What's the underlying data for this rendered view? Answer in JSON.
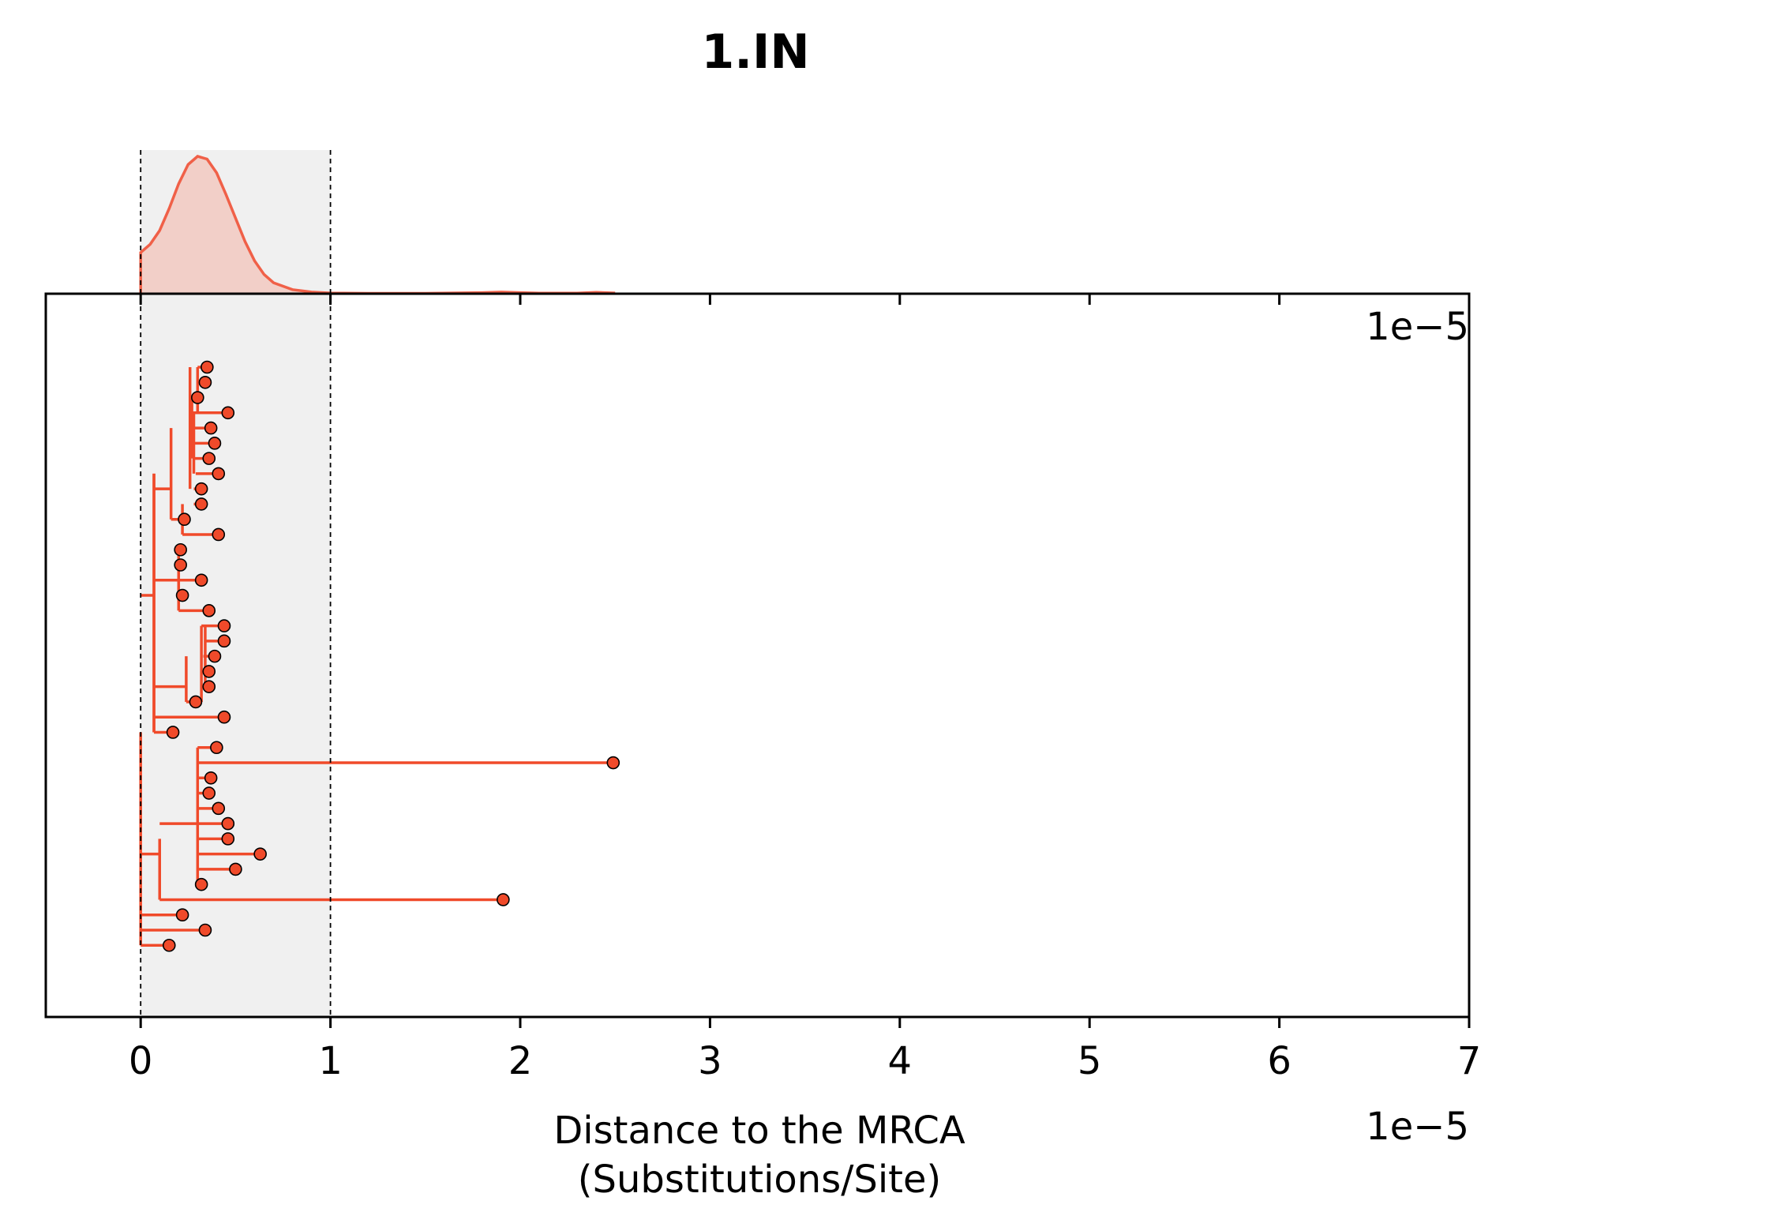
{
  "chart_data": {
    "type": "scatter",
    "title": "1.IN",
    "xlabel_line1": "Distance to the MRCA",
    "xlabel_line2": "(Substitutions/Site)",
    "x_offset_label": "1e−5",
    "x_offset_label_top": "1e−5",
    "xlim": [
      -0.5,
      7
    ],
    "x_ticks": [
      0,
      1,
      2,
      3,
      4,
      5,
      6,
      7
    ],
    "highlight_interval": [
      0,
      1
    ],
    "grid": false,
    "colors": {
      "tree": "#f04a2a",
      "tip_fill": "#f04a2a",
      "tip_edge": "#000000",
      "density_line": "#f06048",
      "density_fill": "#f2cfc8",
      "highlight": "#f0f0f0"
    },
    "tips": [
      {
        "x": 0.35,
        "y": 1
      },
      {
        "x": 0.34,
        "y": 2
      },
      {
        "x": 0.3,
        "y": 3
      },
      {
        "x": 0.46,
        "y": 4
      },
      {
        "x": 0.37,
        "y": 5
      },
      {
        "x": 0.39,
        "y": 6
      },
      {
        "x": 0.36,
        "y": 7
      },
      {
        "x": 0.41,
        "y": 8
      },
      {
        "x": 0.32,
        "y": 9
      },
      {
        "x": 0.32,
        "y": 10
      },
      {
        "x": 0.23,
        "y": 11
      },
      {
        "x": 0.41,
        "y": 12
      },
      {
        "x": 0.21,
        "y": 13
      },
      {
        "x": 0.21,
        "y": 14
      },
      {
        "x": 0.32,
        "y": 15
      },
      {
        "x": 0.22,
        "y": 16
      },
      {
        "x": 0.36,
        "y": 17
      },
      {
        "x": 0.44,
        "y": 18
      },
      {
        "x": 0.44,
        "y": 19
      },
      {
        "x": 0.39,
        "y": 20
      },
      {
        "x": 0.36,
        "y": 21
      },
      {
        "x": 0.36,
        "y": 22
      },
      {
        "x": 0.29,
        "y": 23
      },
      {
        "x": 0.44,
        "y": 24
      },
      {
        "x": 0.17,
        "y": 25
      },
      {
        "x": 0.4,
        "y": 26
      },
      {
        "x": 2.49,
        "y": 27
      },
      {
        "x": 0.37,
        "y": 28
      },
      {
        "x": 0.36,
        "y": 29
      },
      {
        "x": 0.41,
        "y": 30
      },
      {
        "x": 0.46,
        "y": 31
      },
      {
        "x": 0.46,
        "y": 32
      },
      {
        "x": 0.63,
        "y": 33
      },
      {
        "x": 0.5,
        "y": 34
      },
      {
        "x": 0.32,
        "y": 35
      },
      {
        "x": 1.91,
        "y": 36
      },
      {
        "x": 0.22,
        "y": 37
      },
      {
        "x": 0.34,
        "y": 38
      },
      {
        "x": 0.15,
        "y": 39
      }
    ],
    "density": {
      "x": [
        0,
        0.05,
        0.1,
        0.15,
        0.2,
        0.25,
        0.3,
        0.35,
        0.4,
        0.45,
        0.5,
        0.55,
        0.6,
        0.65,
        0.7,
        0.8,
        0.9,
        1.0,
        1.2,
        1.5,
        1.8,
        1.9,
        2.0,
        2.1,
        2.3,
        2.4,
        2.5
      ],
      "y": [
        0.3,
        0.36,
        0.46,
        0.62,
        0.8,
        0.94,
        1.0,
        0.98,
        0.88,
        0.72,
        0.55,
        0.38,
        0.24,
        0.14,
        0.08,
        0.03,
        0.012,
        0.005,
        0.003,
        0.003,
        0.008,
        0.012,
        0.008,
        0.004,
        0.004,
        0.01,
        0.005
      ]
    }
  }
}
